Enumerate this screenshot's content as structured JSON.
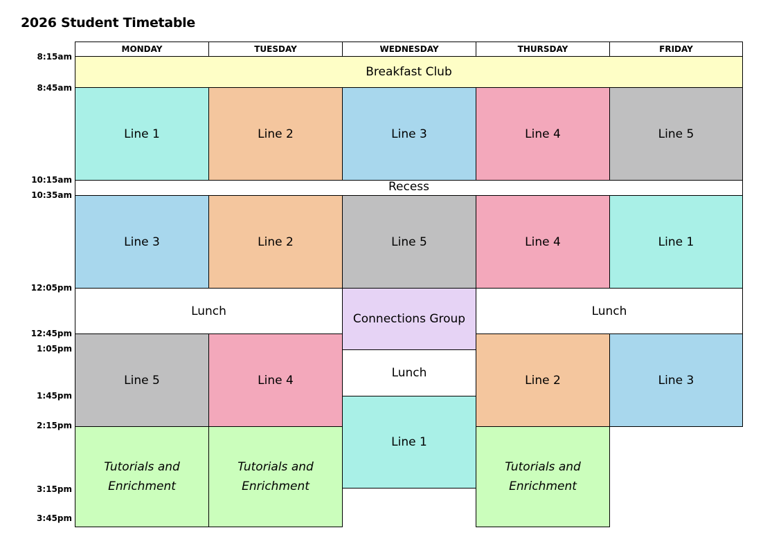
{
  "title": "2026 Student Timetable",
  "days": [
    "MONDAY",
    "TUESDAY",
    "WEDNESDAY",
    "THURSDAY",
    "FRIDAY"
  ],
  "times": [
    "8:15am",
    "8:45am",
    "10:15am",
    "10:35am",
    "12:05pm",
    "12:45pm",
    "1:05pm",
    "1:45pm",
    "2:15pm",
    "3:15pm",
    "3:45pm"
  ],
  "blocks": {
    "breakfast": "Breakfast Club",
    "recess": "Recess",
    "mon_p1": "Line 1",
    "tue_p1": "Line 2",
    "wed_p1": "Line 3",
    "thu_p1": "Line 4",
    "fri_p1": "Line 5",
    "mon_p2": "Line 3",
    "tue_p2": "Line 2",
    "wed_p2": "Line 5",
    "thu_p2": "Line 4",
    "fri_p2": "Line 1",
    "lunch_mon_tue": "Lunch",
    "connections": "Connections Group",
    "lunch_thu_fri": "Lunch",
    "wed_lunch": "Lunch",
    "mon_p3": "Line 5",
    "tue_p3": "Line 4",
    "thu_p3": "Line 2",
    "fri_p3": "Line 3",
    "wed_p3": "Line 1",
    "tutorial_line1": "Tutorials and",
    "tutorial_line2": "Enrichment"
  },
  "colors": {
    "line1": "#a9f0e7",
    "line2": "#f4c69e",
    "line3": "#a8d7ed",
    "line4": "#f3a8bb",
    "line5": "#bfbfc0",
    "breakfast": "#fefec6",
    "connections": "#e6d3f5",
    "tutorials": "#cbfebc"
  }
}
